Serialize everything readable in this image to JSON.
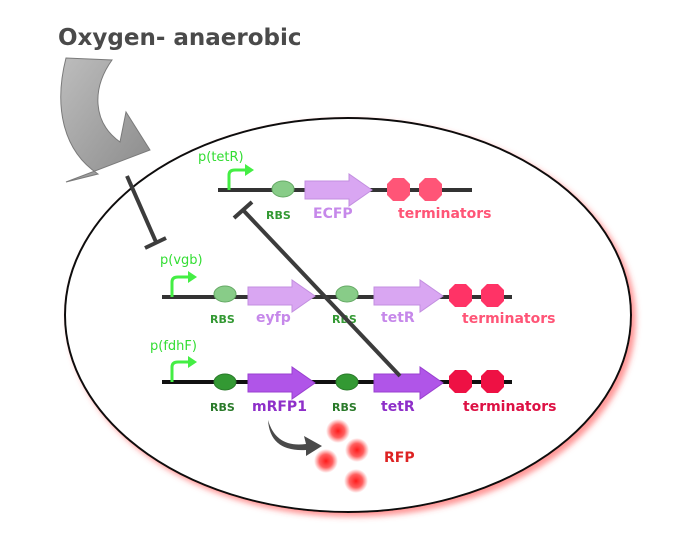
{
  "title": "Oxygen- anaerobic",
  "operons": [
    {
      "promoter": "p(tetR)",
      "rbs1": "RBS",
      "gene1": "ECFP",
      "terminators": "terminators"
    },
    {
      "promoter": "p(vgb)",
      "rbs1": "RBS",
      "gene1": "eyfp",
      "rbs2": "RBS",
      "gene2": "tetR",
      "terminators": "terminators"
    },
    {
      "promoter": "p(fdhF)",
      "rbs1": "RBS",
      "gene1": "mRFP1",
      "rbs2": "RBS",
      "gene2": "tetR",
      "terminators": "terminators"
    }
  ],
  "output": "RFP",
  "colors": {
    "promoter_arrow": "#44ee44",
    "rbs_light": "#88cc88",
    "rbs_dark": "#339933",
    "gene_light": "#d9a6f2",
    "gene_dark": "#b055e8",
    "terminator_light": "#ff5577",
    "terminator_dark": "#ee1144",
    "rfp_glow": "#ff2020",
    "inhibition_line": "#3c3c3c"
  }
}
